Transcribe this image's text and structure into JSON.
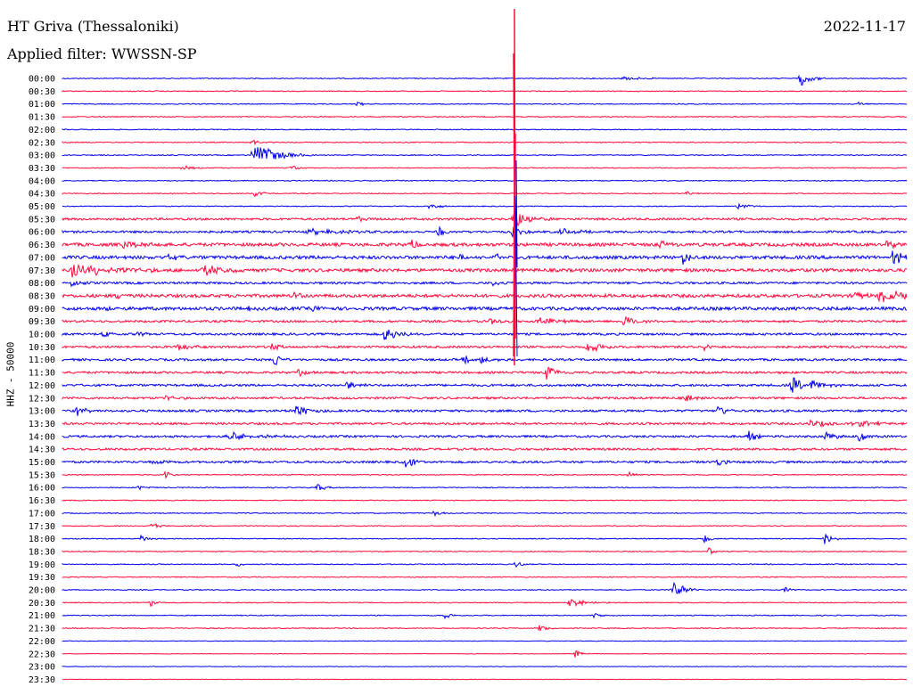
{
  "header": {
    "station": "HT Griva (Thessaloniki)",
    "filter_label": "Applied filter: WWSSN-SP",
    "date": "2022-11-17"
  },
  "colors": {
    "trace_a": "#0000ee",
    "trace_b": "#ff0a3c"
  },
  "chart_data": {
    "type": "line",
    "title": "HT Griva (Thessaloniki)",
    "ylabel": "HHZ - 50000",
    "row_labels": [
      "00:00",
      "00:30",
      "01:00",
      "01:30",
      "02:00",
      "02:30",
      "03:00",
      "03:30",
      "04:00",
      "04:30",
      "05:00",
      "05:30",
      "06:00",
      "06:30",
      "07:00",
      "07:30",
      "08:00",
      "08:30",
      "09:00",
      "09:30",
      "10:00",
      "10:30",
      "11:00",
      "11:30",
      "12:00",
      "12:30",
      "13:00",
      "13:30",
      "14:00",
      "14:30",
      "15:00",
      "15:30",
      "16:00",
      "16:30",
      "17:00",
      "17:30",
      "18:00",
      "18:30",
      "19:00",
      "19:30",
      "20:00",
      "20:30",
      "21:00",
      "21:30",
      "22:00",
      "22:30",
      "23:00",
      "23:30"
    ],
    "row_minutes": 30,
    "legend": "none",
    "grid": false
  }
}
